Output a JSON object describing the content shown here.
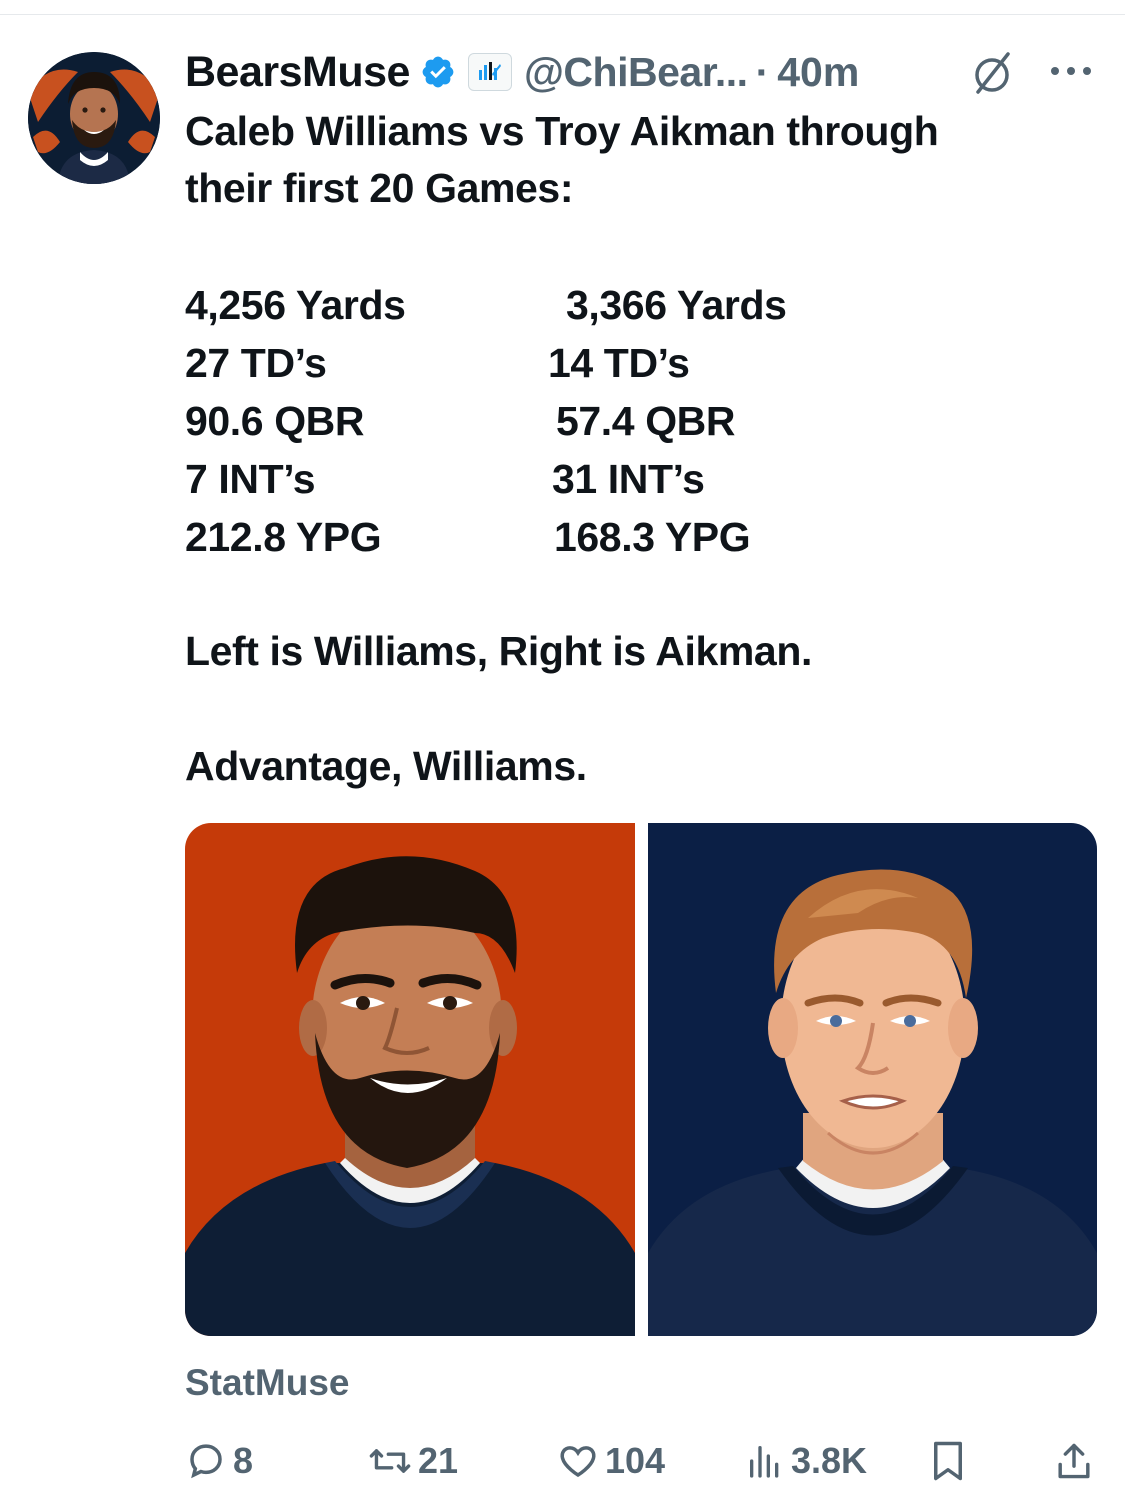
{
  "post": {
    "display_name": "BearsMuse",
    "handle": "@ChiBear...",
    "separator": "·",
    "time": "40m",
    "text_lines": [
      "Caleb Williams vs Troy Aikman through",
      "their first 20 Games:"
    ],
    "stats_left": [
      "4,256 Yards",
      "27 TD’s",
      "90.6 QBR",
      "7 INT’s",
      "212.8 YPG"
    ],
    "stats_right": [
      "3,366 Yards",
      "14 TD’s",
      "57.4 QBR",
      "31 INT’s",
      "168.3 YPG"
    ],
    "closing_1": "Left is Williams, Right is Aikman.",
    "closing_2": "Advantage, Williams.",
    "source": "StatMuse"
  },
  "actions": {
    "replies": "8",
    "reposts": "21",
    "likes": "104",
    "views": "3.8K"
  },
  "icons": {
    "verified": "verified-badge-icon",
    "affiliation": "statmuse-affiliation-icon",
    "grok": "grok-icon",
    "more": "more-icon",
    "reply": "reply-icon",
    "repost": "repost-icon",
    "like": "heart-icon",
    "views": "views-icon",
    "bookmark": "bookmark-icon",
    "share": "share-icon"
  },
  "colors": {
    "verified": "#1d9bf0",
    "secondary_text": "#536471",
    "left_panel": "#c53a09",
    "right_panel": "#0b1f45"
  }
}
